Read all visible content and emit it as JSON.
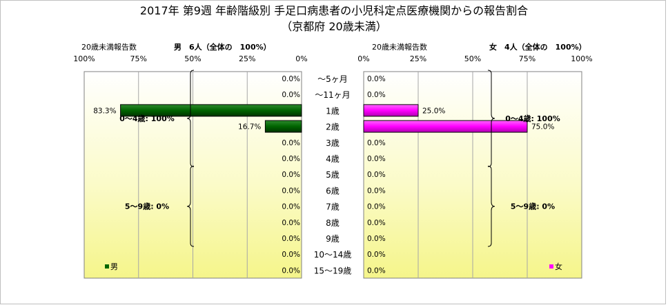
{
  "chart_data": {
    "type": "bar",
    "title": "2017年 第9週 年齢階級別 手足口病患者の小児科定点医療機関からの報告割合",
    "subtitle": "（京都府 20歳未満）",
    "categories": [
      "～5ヶ月",
      "～11ヶ月",
      "1歳",
      "2歳",
      "3歳",
      "4歳",
      "5歳",
      "6歳",
      "7歳",
      "8歳",
      "9歳",
      "10～14歳",
      "15～19歳"
    ],
    "xlim": [
      0,
      100
    ],
    "xticks": [
      "100%",
      "75%",
      "50%",
      "25%",
      "0%"
    ],
    "xticks_right": [
      "0%",
      "25%",
      "50%",
      "75%",
      "100%"
    ],
    "grid": true,
    "panels": [
      {
        "side": "left",
        "header_left": "20歳未満報告数",
        "header_right": "男　6人（全体の　100%）",
        "legend": "男",
        "color": "#006600",
        "values": [
          0,
          0,
          83.3,
          16.7,
          0,
          0,
          0,
          0,
          0,
          0,
          0,
          0,
          0
        ],
        "value_labels": [
          "0.0%",
          "0.0%",
          "83.3%",
          "16.7%",
          "0.0%",
          "0.0%",
          "0.0%",
          "0.0%",
          "0.0%",
          "0.0%",
          "0.0%",
          "0.0%",
          "0.0%"
        ],
        "groups": [
          {
            "label": "0～4歳: 100%",
            "from": 0,
            "to": 5
          },
          {
            "label": "5～9歳: 0%",
            "from": 6,
            "to": 10
          }
        ]
      },
      {
        "side": "right",
        "header_left": "20歳未満報告数",
        "header_right": "女　4人（全体の　100%）",
        "legend": "女",
        "color": "#ff00ff",
        "values": [
          0,
          0,
          25.0,
          75.0,
          0,
          0,
          0,
          0,
          0,
          0,
          0,
          0,
          0
        ],
        "value_labels": [
          "0.0%",
          "0.0%",
          "25.0%",
          "75.0%",
          "0.0%",
          "0.0%",
          "0.0%",
          "0.0%",
          "0.0%",
          "0.0%",
          "0.0%",
          "0.0%",
          "0.0%"
        ],
        "groups": [
          {
            "label": "0～4歳: 100%",
            "from": 0,
            "to": 5
          },
          {
            "label": "5～9歳: 0%",
            "from": 6,
            "to": 10
          }
        ]
      }
    ]
  }
}
